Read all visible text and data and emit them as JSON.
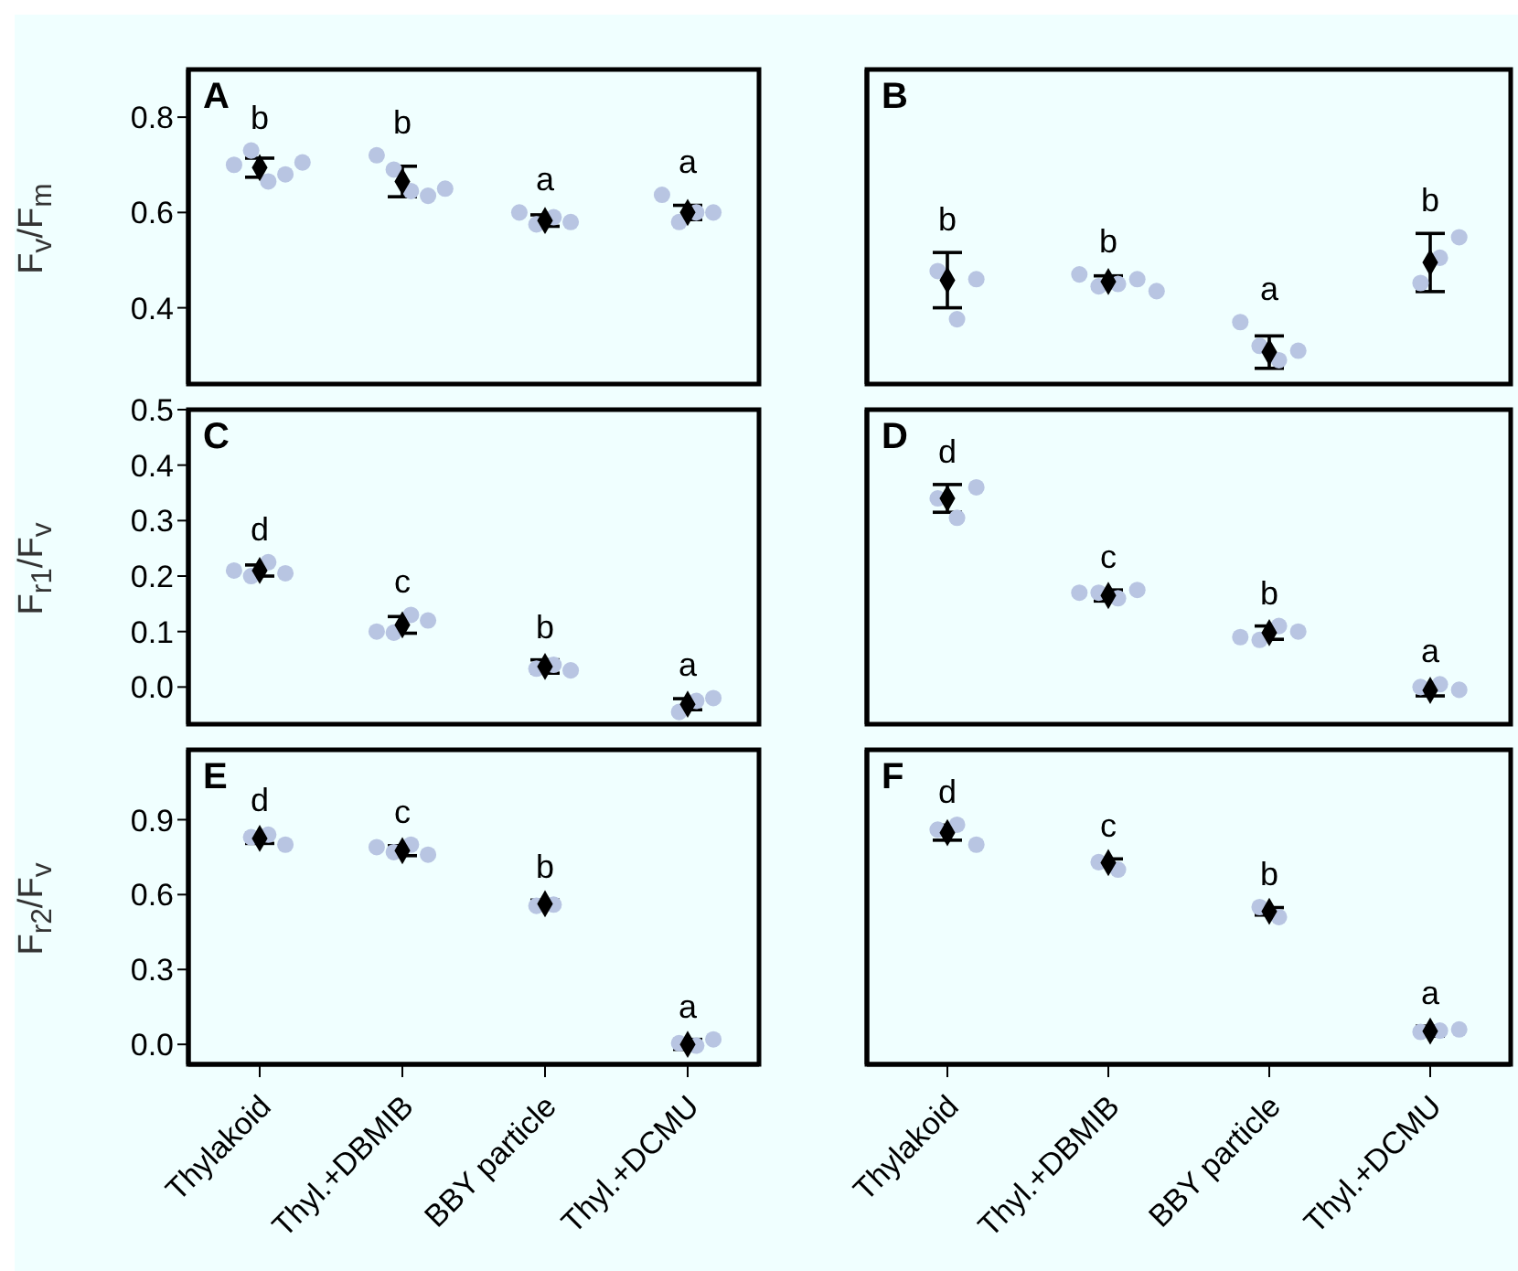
{
  "chart_data": [
    {
      "type": "scatter",
      "ylabel": "F$_{v}$/F$_{m}$",
      "categories": [
        "Thylakoid",
        "Thyl.+DBMIB",
        "BBY particle",
        "Thyl.+DCMU"
      ],
      "ylim": [
        0.24,
        0.9
      ],
      "yticks": [
        0.4,
        0.6,
        0.8
      ],
      "tick_labels": "y",
      "series": [
        {
          "color": "#b8c5e2",
          "marker": "circle",
          "x": [
            "Thylakoid",
            "Thylakoid",
            "Thylakoid",
            "Thylakoid",
            "Thylakoid",
            "Thyl.+DBMIB",
            "Thyl.+DBMIB",
            "Thyl.+DBMIB",
            "Thyl.+DBMIB",
            "Thyl.+DBMIB",
            "BBY particle",
            "BBY particle",
            "BBY particle",
            "BBY particle",
            "Thyl.+DCMU",
            "Thyl.+DCMU",
            "Thyl.+DCMU",
            "Thyl.+DCMU"
          ],
          "values": [
            0.7,
            0.73,
            0.665,
            0.68,
            0.705,
            0.72,
            0.69,
            0.645,
            0.635,
            0.65,
            0.6,
            0.575,
            0.59,
            0.58,
            0.637,
            0.58,
            0.6,
            0.6
          ]
        },
        {
          "color": "#000000",
          "marker": "diamond",
          "values": [
            0.694,
            0.665,
            0.583,
            0.6
          ],
          "errors": [
            0.02,
            0.032,
            0.012,
            0.015
          ]
        }
      ],
      "annotations": [
        "A",
        "b",
        "b",
        "a",
        "a"
      ]
    },
    {
      "type": "scatter",
      "categories": [
        "Thylakoid",
        "Thyl.+DBMIB",
        "BBY particle",
        "Thyl.+DCMU"
      ],
      "ylim": [
        0.24,
        0.9
      ],
      "tick_labels": false,
      "series": [
        {
          "color": "#b8c5e2",
          "marker": "circle",
          "x": [
            "Thylakoid",
            "Thylakoid",
            "Thylakoid",
            "Thyl.+DBMIB",
            "Thyl.+DBMIB",
            "Thyl.+DBMIB",
            "Thyl.+DBMIB",
            "Thyl.+DBMIB",
            "BBY particle",
            "BBY particle",
            "BBY particle",
            "BBY particle",
            "Thyl.+DCMU",
            "Thyl.+DCMU",
            "Thyl.+DCMU"
          ],
          "values": [
            0.477,
            0.376,
            0.46,
            0.47,
            0.445,
            0.45,
            0.46,
            0.435,
            0.37,
            0.32,
            0.29,
            0.31,
            0.452,
            0.505,
            0.548
          ]
        },
        {
          "color": "#000000",
          "marker": "diamond",
          "values": [
            0.458,
            0.455,
            0.307,
            0.495
          ],
          "errors": [
            0.058,
            0.012,
            0.034,
            0.061
          ]
        }
      ],
      "annotations": [
        "B",
        "b",
        "b",
        "a",
        "b"
      ]
    },
    {
      "type": "scatter",
      "ylabel": "F$_{r1}$/F$_{v}$",
      "categories": [
        "Thylakoid",
        "Thyl.+DBMIB",
        "BBY particle",
        "Thyl.+DCMU"
      ],
      "ylim": [
        -0.067,
        0.5
      ],
      "yticks": [
        {
          "value": 0,
          "label": "0.0"
        },
        0.1,
        0.2,
        0.3,
        0.4,
        0.5
      ],
      "tick_labels": "y",
      "series": [
        {
          "color": "#b8c5e2",
          "marker": "circle",
          "x": [
            "Thylakoid",
            "Thylakoid",
            "Thylakoid",
            "Thylakoid",
            "Thyl.+DBMIB",
            "Thyl.+DBMIB",
            "Thyl.+DBMIB",
            "Thyl.+DBMIB",
            "BBY particle",
            "BBY particle",
            "BBY particle",
            "Thyl.+DCMU",
            "Thyl.+DCMU",
            "Thyl.+DCMU"
          ],
          "values": [
            0.21,
            0.2,
            0.225,
            0.205,
            0.1,
            0.098,
            0.13,
            0.12,
            0.033,
            0.04,
            0.03,
            -0.045,
            -0.025,
            -0.02
          ]
        },
        {
          "color": "#000000",
          "marker": "diamond",
          "values": [
            0.21,
            0.112,
            0.037,
            -0.031
          ],
          "errors": [
            0.01,
            0.015,
            0.012,
            0.01
          ]
        }
      ],
      "annotations": [
        "C",
        "d",
        "c",
        "b",
        "a"
      ]
    },
    {
      "type": "scatter",
      "categories": [
        "Thylakoid",
        "Thyl.+DBMIB",
        "BBY particle",
        "Thyl.+DCMU"
      ],
      "ylim": [
        -0.067,
        0.5
      ],
      "tick_labels": false,
      "series": [
        {
          "color": "#b8c5e2",
          "marker": "circle",
          "x": [
            "Thylakoid",
            "Thylakoid",
            "Thylakoid",
            "Thyl.+DBMIB",
            "Thyl.+DBMIB",
            "Thyl.+DBMIB",
            "Thyl.+DBMIB",
            "BBY particle",
            "BBY particle",
            "BBY particle",
            "BBY particle",
            "Thyl.+DCMU",
            "Thyl.+DCMU",
            "Thyl.+DCMU"
          ],
          "values": [
            0.34,
            0.305,
            0.36,
            0.17,
            0.17,
            0.16,
            0.175,
            0.09,
            0.085,
            0.11,
            0.1,
            0.0,
            0.005,
            -0.005
          ]
        },
        {
          "color": "#000000",
          "marker": "diamond",
          "values": [
            0.34,
            0.165,
            0.098,
            -0.006
          ],
          "errors": [
            0.025,
            0.01,
            0.012,
            0.01
          ]
        }
      ],
      "annotations": [
        "D",
        "d",
        "c",
        "b",
        "a"
      ]
    },
    {
      "type": "scatter",
      "ylabel": "F$_{r2}$/F$_{v}$",
      "categories": [
        "Thylakoid",
        "Thyl.+DBMIB",
        "BBY particle",
        "Thyl.+DCMU"
      ],
      "ylim": [
        -0.08,
        1.18
      ],
      "yticks": [
        {
          "value": 0,
          "label": "0.0"
        },
        0.3,
        0.6,
        0.9
      ],
      "series": [
        {
          "color": "#b8c5e2",
          "marker": "circle",
          "x": [
            "Thylakoid",
            "Thylakoid",
            "Thylakoid",
            "Thyl.+DBMIB",
            "Thyl.+DBMIB",
            "Thyl.+DBMIB",
            "Thyl.+DBMIB",
            "BBY particle",
            "BBY particle",
            "Thyl.+DCMU",
            "Thyl.+DCMU",
            "Thyl.+DCMU"
          ],
          "values": [
            0.83,
            0.84,
            0.8,
            0.79,
            0.77,
            0.8,
            0.76,
            0.555,
            0.56,
            0.005,
            -0.005,
            0.02
          ]
        },
        {
          "color": "#000000",
          "marker": "diamond",
          "values": [
            0.825,
            0.776,
            0.563,
            0.0
          ],
          "errors": [
            0.02,
            0.02,
            0.015,
            0.02
          ]
        }
      ],
      "annotations": [
        "E",
        "d",
        "c",
        "b",
        "a"
      ]
    },
    {
      "type": "scatter",
      "categories": [
        "Thylakoid",
        "Thyl.+DBMIB",
        "BBY particle",
        "Thyl.+DCMU"
      ],
      "ylim": [
        -0.08,
        1.18
      ],
      "tick_labels": "x",
      "series": [
        {
          "color": "#b8c5e2",
          "marker": "circle",
          "x": [
            "Thylakoid",
            "Thylakoid",
            "Thylakoid",
            "Thyl.+DBMIB",
            "Thyl.+DBMIB",
            "BBY particle",
            "BBY particle",
            "Thyl.+DCMU",
            "Thyl.+DCMU",
            "Thyl.+DCMU"
          ],
          "values": [
            0.86,
            0.88,
            0.8,
            0.73,
            0.7,
            0.55,
            0.51,
            0.05,
            0.055,
            0.06
          ]
        },
        {
          "color": "#000000",
          "marker": "diamond",
          "values": [
            0.848,
            0.728,
            0.533,
            0.053
          ],
          "errors": [
            0.03,
            0.015,
            0.015,
            0.02
          ]
        }
      ],
      "annotations": [
        "F",
        "d",
        "c",
        "b",
        "a"
      ]
    }
  ]
}
